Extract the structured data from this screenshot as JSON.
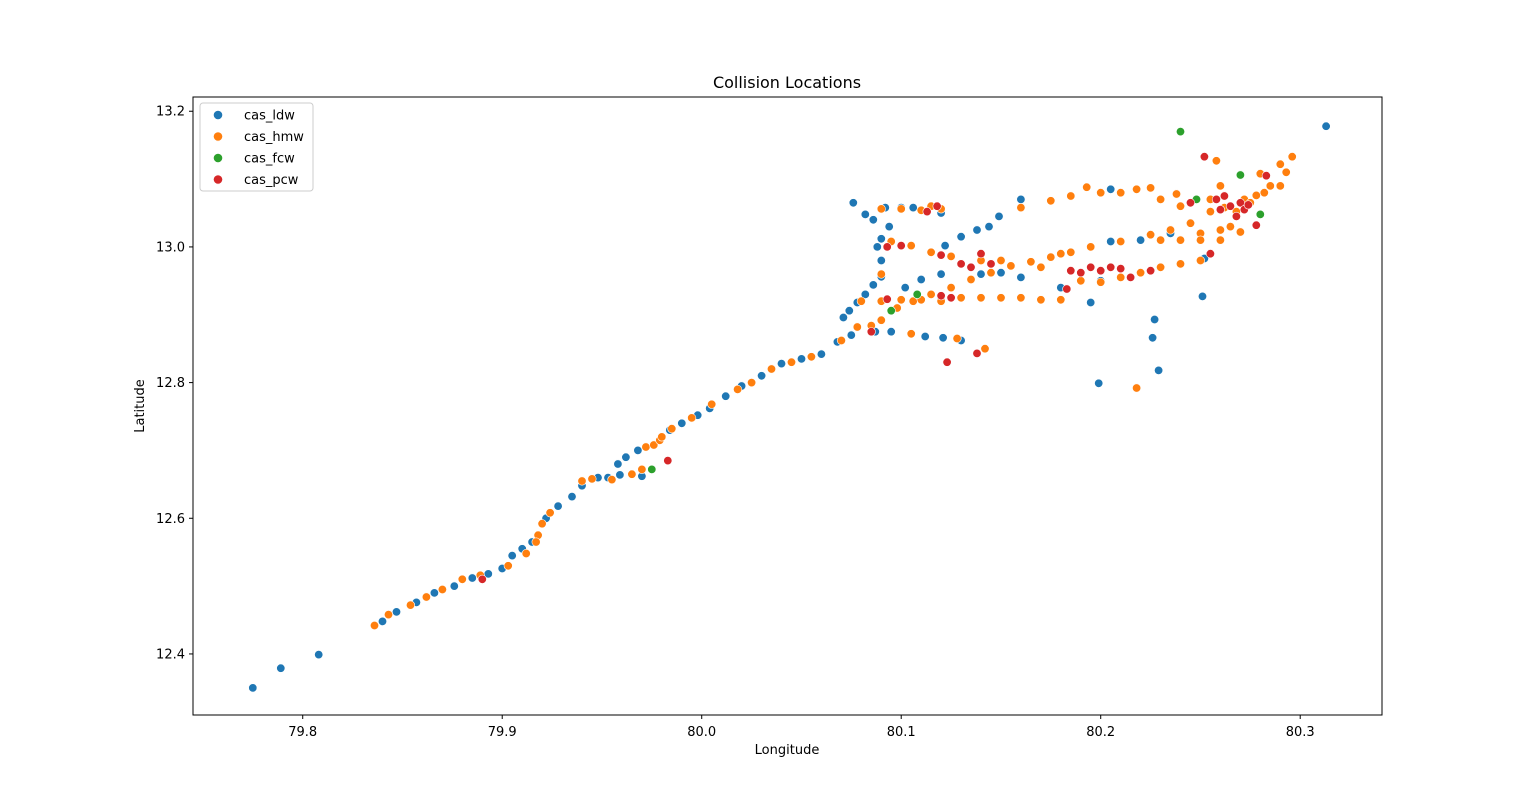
{
  "chart_data": {
    "type": "scatter",
    "title": "Collision Locations",
    "xlabel": "Longitude",
    "ylabel": "Latitude",
    "xlim": [
      79.745,
      80.341
    ],
    "ylim": [
      12.31,
      13.221
    ],
    "x_ticks": [
      "79.8",
      "79.9",
      "80.0",
      "80.1",
      "80.2",
      "80.3"
    ],
    "y_ticks": [
      "12.4",
      "12.6",
      "12.8",
      "13.0",
      "13.2"
    ],
    "grid": false,
    "legend_position": "upper-left",
    "series": [
      {
        "name": "cas_ldw",
        "color": "#1f77b4",
        "points": [
          [
            79.775,
            12.35
          ],
          [
            79.789,
            12.379
          ],
          [
            79.808,
            12.399
          ],
          [
            79.84,
            12.448
          ],
          [
            79.847,
            12.462
          ],
          [
            79.857,
            12.476
          ],
          [
            79.866,
            12.49
          ],
          [
            79.876,
            12.5
          ],
          [
            79.885,
            12.512
          ],
          [
            79.893,
            12.518
          ],
          [
            79.9,
            12.526
          ],
          [
            79.905,
            12.545
          ],
          [
            79.91,
            12.555
          ],
          [
            79.915,
            12.565
          ],
          [
            79.922,
            12.6
          ],
          [
            79.928,
            12.618
          ],
          [
            79.935,
            12.632
          ],
          [
            79.94,
            12.648
          ],
          [
            79.948,
            12.66
          ],
          [
            79.953,
            12.66
          ],
          [
            79.959,
            12.664
          ],
          [
            79.958,
            12.68
          ],
          [
            79.962,
            12.69
          ],
          [
            79.968,
            12.7
          ],
          [
            79.97,
            12.662
          ],
          [
            79.984,
            12.73
          ],
          [
            79.99,
            12.74
          ],
          [
            79.998,
            12.752
          ],
          [
            80.004,
            12.762
          ],
          [
            80.012,
            12.78
          ],
          [
            80.02,
            12.795
          ],
          [
            80.03,
            12.81
          ],
          [
            80.04,
            12.828
          ],
          [
            80.05,
            12.835
          ],
          [
            80.06,
            12.842
          ],
          [
            80.068,
            12.86
          ],
          [
            80.075,
            12.87
          ],
          [
            80.071,
            12.896
          ],
          [
            80.074,
            12.906
          ],
          [
            80.078,
            12.918
          ],
          [
            80.082,
            12.93
          ],
          [
            80.086,
            12.944
          ],
          [
            80.09,
            12.956
          ],
          [
            80.09,
            12.98
          ],
          [
            80.088,
            13.0
          ],
          [
            80.09,
            13.012
          ],
          [
            80.094,
            13.03
          ],
          [
            80.082,
            13.048
          ],
          [
            80.086,
            13.04
          ],
          [
            80.092,
            13.058
          ],
          [
            80.076,
            13.065
          ],
          [
            80.1,
            13.058
          ],
          [
            80.106,
            13.058
          ],
          [
            80.12,
            13.05
          ],
          [
            80.122,
            13.002
          ],
          [
            80.13,
            13.015
          ],
          [
            80.138,
            13.025
          ],
          [
            80.144,
            13.03
          ],
          [
            80.149,
            13.045
          ],
          [
            80.16,
            13.07
          ],
          [
            80.12,
            12.96
          ],
          [
            80.14,
            12.96
          ],
          [
            80.095,
            12.875
          ],
          [
            80.102,
            12.94
          ],
          [
            80.11,
            12.952
          ],
          [
            80.12,
            12.925
          ],
          [
            80.15,
            12.962
          ],
          [
            80.16,
            12.955
          ],
          [
            80.18,
            12.94
          ],
          [
            80.195,
            12.918
          ],
          [
            80.2,
            12.95
          ],
          [
            80.205,
            13.085
          ],
          [
            80.205,
            13.008
          ],
          [
            80.22,
            13.01
          ],
          [
            80.235,
            13.02
          ],
          [
            80.245,
            13.035
          ],
          [
            80.252,
            12.983
          ],
          [
            80.251,
            12.927
          ],
          [
            80.227,
            12.893
          ],
          [
            80.226,
            12.866
          ],
          [
            80.229,
            12.818
          ],
          [
            80.199,
            12.799
          ],
          [
            80.313,
            13.178
          ],
          [
            80.112,
            12.868
          ],
          [
            80.121,
            12.866
          ],
          [
            80.13,
            12.862
          ],
          [
            80.087,
            12.875
          ]
        ]
      },
      {
        "name": "cas_hmw",
        "color": "#ff7f0e",
        "points": [
          [
            79.836,
            12.442
          ],
          [
            79.843,
            12.458
          ],
          [
            79.854,
            12.472
          ],
          [
            79.862,
            12.484
          ],
          [
            79.87,
            12.495
          ],
          [
            79.88,
            12.51
          ],
          [
            79.889,
            12.516
          ],
          [
            79.903,
            12.53
          ],
          [
            79.912,
            12.548
          ],
          [
            79.918,
            12.575
          ],
          [
            79.92,
            12.592
          ],
          [
            79.924,
            12.608
          ],
          [
            79.94,
            12.655
          ],
          [
            79.945,
            12.658
          ],
          [
            79.955,
            12.657
          ],
          [
            79.965,
            12.665
          ],
          [
            79.97,
            12.672
          ],
          [
            79.972,
            12.705
          ],
          [
            79.976,
            12.708
          ],
          [
            79.979,
            12.715
          ],
          [
            79.98,
            12.72
          ],
          [
            79.985,
            12.732
          ],
          [
            79.995,
            12.748
          ],
          [
            80.005,
            12.768
          ],
          [
            80.018,
            12.79
          ],
          [
            80.025,
            12.8
          ],
          [
            80.035,
            12.82
          ],
          [
            80.045,
            12.83
          ],
          [
            80.055,
            12.838
          ],
          [
            80.07,
            12.862
          ],
          [
            80.078,
            12.882
          ],
          [
            80.085,
            12.884
          ],
          [
            80.09,
            12.892
          ],
          [
            80.098,
            12.91
          ],
          [
            80.106,
            12.92
          ],
          [
            80.115,
            12.93
          ],
          [
            80.125,
            12.94
          ],
          [
            80.135,
            12.952
          ],
          [
            80.145,
            12.962
          ],
          [
            80.155,
            12.972
          ],
          [
            80.165,
            12.978
          ],
          [
            80.175,
            12.985
          ],
          [
            80.185,
            12.992
          ],
          [
            80.195,
            13.0
          ],
          [
            80.21,
            13.008
          ],
          [
            80.225,
            13.018
          ],
          [
            80.235,
            13.025
          ],
          [
            80.245,
            13.035
          ],
          [
            80.255,
            13.052
          ],
          [
            80.262,
            13.058
          ],
          [
            80.272,
            13.07
          ],
          [
            80.282,
            13.08
          ],
          [
            80.29,
            13.09
          ],
          [
            80.293,
            13.11
          ],
          [
            80.296,
            13.133
          ],
          [
            80.29,
            13.122
          ],
          [
            80.285,
            13.09
          ],
          [
            80.278,
            13.076
          ],
          [
            80.28,
            13.108
          ],
          [
            80.258,
            13.127
          ],
          [
            80.26,
            13.09
          ],
          [
            80.265,
            13.03
          ],
          [
            80.26,
            13.025
          ],
          [
            80.25,
            13.02
          ],
          [
            80.238,
            13.078
          ],
          [
            80.09,
            12.96
          ],
          [
            80.095,
            13.008
          ],
          [
            80.105,
            13.002
          ],
          [
            80.115,
            12.992
          ],
          [
            80.125,
            12.986
          ],
          [
            80.14,
            12.98
          ],
          [
            80.15,
            12.98
          ],
          [
            80.09,
            13.056
          ],
          [
            80.1,
            13.056
          ],
          [
            80.11,
            13.054
          ],
          [
            80.115,
            13.06
          ],
          [
            80.12,
            13.056
          ],
          [
            80.08,
            12.92
          ],
          [
            80.09,
            12.92
          ],
          [
            80.1,
            12.922
          ],
          [
            80.11,
            12.922
          ],
          [
            80.12,
            12.92
          ],
          [
            80.13,
            12.925
          ],
          [
            80.14,
            12.925
          ],
          [
            80.15,
            12.925
          ],
          [
            80.16,
            12.925
          ],
          [
            80.17,
            12.922
          ],
          [
            80.18,
            12.922
          ],
          [
            80.19,
            12.95
          ],
          [
            80.2,
            12.948
          ],
          [
            80.21,
            12.955
          ],
          [
            80.22,
            12.962
          ],
          [
            80.23,
            12.97
          ],
          [
            80.24,
            12.975
          ],
          [
            80.25,
            12.98
          ],
          [
            80.16,
            13.058
          ],
          [
            80.175,
            13.068
          ],
          [
            80.185,
            13.075
          ],
          [
            80.193,
            13.088
          ],
          [
            80.2,
            13.08
          ],
          [
            80.21,
            13.08
          ],
          [
            80.218,
            13.085
          ],
          [
            80.225,
            13.087
          ],
          [
            80.23,
            13.07
          ],
          [
            80.24,
            13.06
          ],
          [
            80.26,
            13.01
          ],
          [
            80.25,
            13.01
          ],
          [
            80.24,
            13.01
          ],
          [
            80.23,
            13.01
          ],
          [
            80.142,
            12.85
          ],
          [
            80.128,
            12.865
          ],
          [
            80.105,
            12.872
          ],
          [
            80.218,
            12.792
          ],
          [
            80.17,
            12.97
          ],
          [
            80.18,
            12.99
          ],
          [
            80.255,
            13.07
          ],
          [
            80.268,
            13.052
          ],
          [
            80.275,
            13.065
          ],
          [
            80.27,
            13.022
          ],
          [
            79.917,
            12.565
          ]
        ]
      },
      {
        "name": "cas_fcw",
        "color": "#2ca02c",
        "points": [
          [
            79.975,
            12.672
          ],
          [
            80.095,
            12.906
          ],
          [
            80.108,
            12.93
          ],
          [
            80.24,
            13.17
          ],
          [
            80.27,
            13.106
          ],
          [
            80.28,
            13.048
          ],
          [
            80.248,
            13.07
          ]
        ]
      },
      {
        "name": "cas_pcw",
        "color": "#d62728",
        "points": [
          [
            79.89,
            12.51
          ],
          [
            79.983,
            12.685
          ],
          [
            80.085,
            12.875
          ],
          [
            80.093,
            13.0
          ],
          [
            80.1,
            13.002
          ],
          [
            80.113,
            13.052
          ],
          [
            80.118,
            13.06
          ],
          [
            80.12,
            12.988
          ],
          [
            80.123,
            12.83
          ],
          [
            80.13,
            12.975
          ],
          [
            80.135,
            12.97
          ],
          [
            80.14,
            12.99
          ],
          [
            80.145,
            12.975
          ],
          [
            80.138,
            12.843
          ],
          [
            80.125,
            12.925
          ],
          [
            80.093,
            12.923
          ],
          [
            80.12,
            12.928
          ],
          [
            80.185,
            12.965
          ],
          [
            80.19,
            12.962
          ],
          [
            80.195,
            12.97
          ],
          [
            80.2,
            12.965
          ],
          [
            80.205,
            12.97
          ],
          [
            80.21,
            12.968
          ],
          [
            80.183,
            12.938
          ],
          [
            80.215,
            12.955
          ],
          [
            80.225,
            12.965
          ],
          [
            80.245,
            13.065
          ],
          [
            80.252,
            13.133
          ],
          [
            80.255,
            12.99
          ],
          [
            80.258,
            13.07
          ],
          [
            80.26,
            13.055
          ],
          [
            80.262,
            13.075
          ],
          [
            80.265,
            13.06
          ],
          [
            80.268,
            13.045
          ],
          [
            80.27,
            13.065
          ],
          [
            80.272,
            13.055
          ],
          [
            80.274,
            13.062
          ],
          [
            80.278,
            13.032
          ],
          [
            80.283,
            13.105
          ]
        ]
      }
    ]
  }
}
